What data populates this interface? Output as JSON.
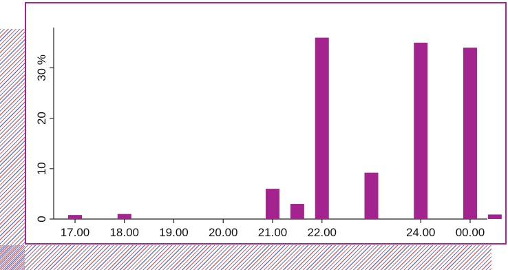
{
  "chart_data": {
    "type": "bar",
    "title": "",
    "xlabel": "",
    "ylabel": "%",
    "ylim": [
      0,
      38
    ],
    "yticks": [
      0,
      10,
      20,
      30
    ],
    "ytick_labels": [
      "0",
      "10",
      "20",
      "30 %"
    ],
    "xtick_labels": [
      "17.00",
      "18.00",
      "19.00",
      "20.00",
      "21.00",
      "22.00",
      "24.00",
      "00.00"
    ],
    "xtick_hours": [
      17,
      18,
      19,
      20,
      21,
      22,
      24,
      25
    ],
    "bar_hours": [
      17,
      18,
      21,
      21.5,
      22,
      23,
      24,
      25,
      25.5
    ],
    "values": [
      0.8,
      1.0,
      6.0,
      3.0,
      36.0,
      9.2,
      35.0,
      34.0,
      0.9
    ],
    "bar_color": "#a3238f",
    "frame_color": "#a3268f",
    "grid": false
  }
}
